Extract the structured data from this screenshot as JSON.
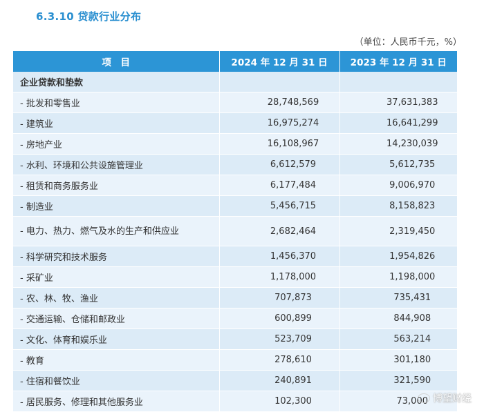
{
  "section_title": "6.3.10 贷款行业分布",
  "unit_note": "（单位：人民币千元，%）",
  "table": {
    "headers": [
      "项　目",
      "2024 年 12 月 31 日",
      "2023 年 12 月 31 日"
    ],
    "group_label": "企业贷款和垫款",
    "rows": [
      {
        "category": "- 批发和零售业",
        "y2024": "28,748,569",
        "y2023": "37,631,383"
      },
      {
        "category": "- 建筑业",
        "y2024": "16,975,274",
        "y2023": "16,641,299"
      },
      {
        "category": "- 房地产业",
        "y2024": "16,108,967",
        "y2023": "14,230,039"
      },
      {
        "category": "- 水利、环境和公共设施管理业",
        "y2024": "6,612,579",
        "y2023": "5,612,735"
      },
      {
        "category": "- 租赁和商务服务业",
        "y2024": "6,177,484",
        "y2023": "9,006,970"
      },
      {
        "category": "- 制造业",
        "y2024": "5,456,715",
        "y2023": "8,158,823"
      },
      {
        "category": "- 电力、热力、燃气及水的生产和供应业",
        "y2024": "2,682,464",
        "y2023": "2,319,450"
      },
      {
        "category": "- 科学研究和技术服务",
        "y2024": "1,456,370",
        "y2023": "1,954,826"
      },
      {
        "category": "- 采矿业",
        "y2024": "1,178,000",
        "y2023": "1,198,000"
      },
      {
        "category": "- 农、林、牧、渔业",
        "y2024": "707,873",
        "y2023": "735,431"
      },
      {
        "category": "- 交通运输、仓储和邮政业",
        "y2024": "600,899",
        "y2023": "844,908"
      },
      {
        "category": "- 文化、体育和娱乐业",
        "y2024": "523,709",
        "y2023": "563,214"
      },
      {
        "category": "- 教育",
        "y2024": "278,610",
        "y2023": "301,180"
      },
      {
        "category": "- 住宿和餐饮业",
        "y2024": "240,891",
        "y2023": "321,590"
      },
      {
        "category": "- 居民服务、修理和其他服务业",
        "y2024": "102,300",
        "y2023": "73,000"
      }
    ]
  },
  "watermark": "博望财经",
  "colors": {
    "accent": "#2c95d6",
    "title": "#2a8fd0",
    "row_light": "#eaf3fb",
    "row_dark": "#dcebf7"
  }
}
